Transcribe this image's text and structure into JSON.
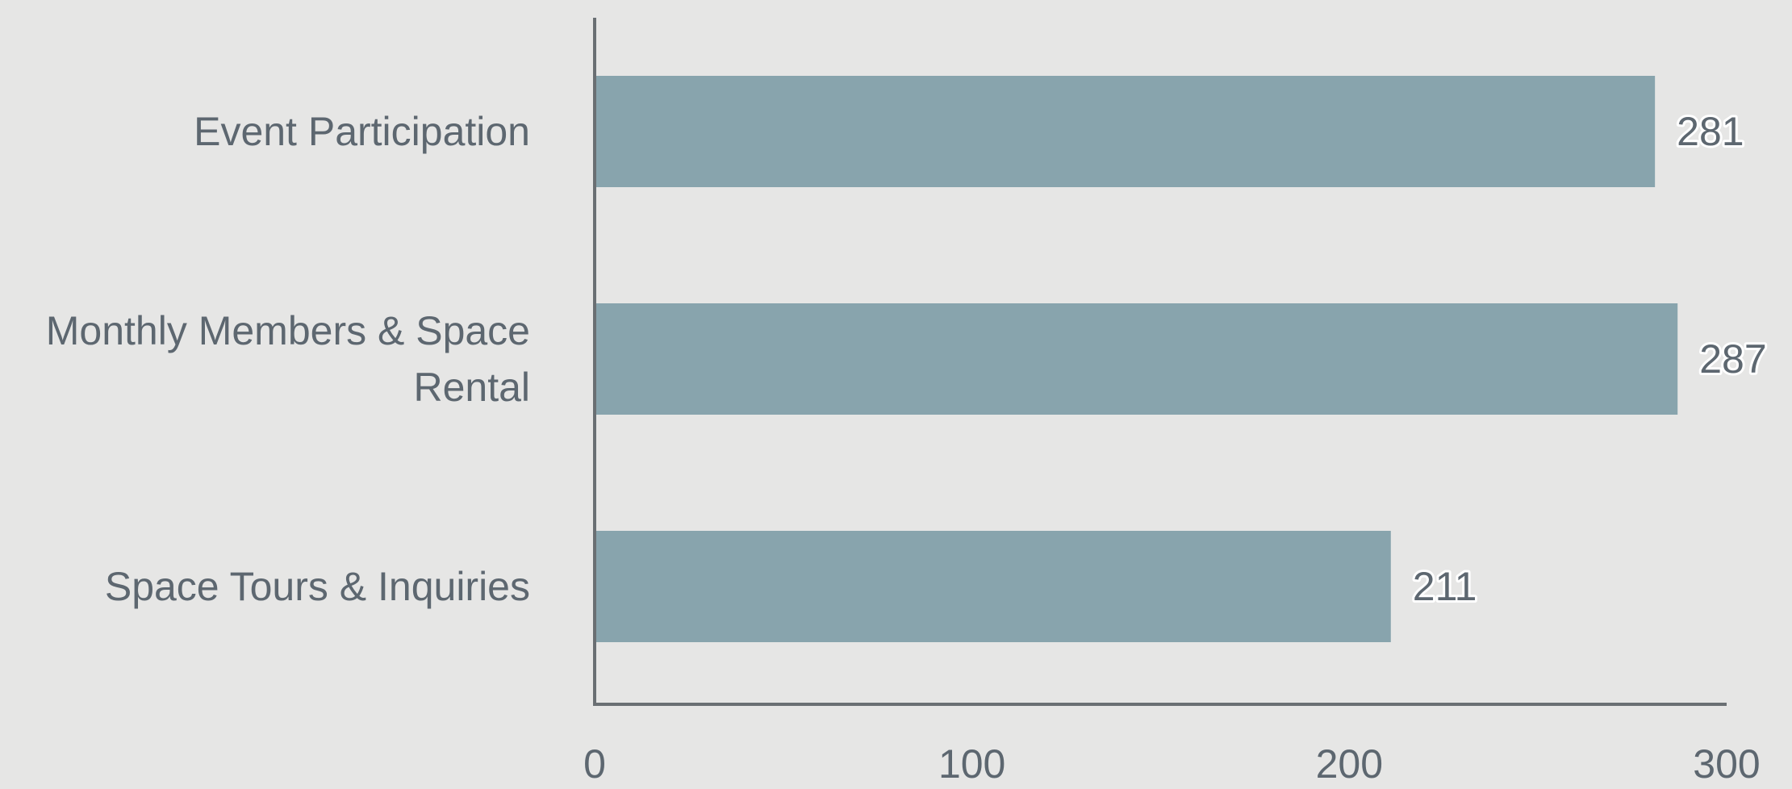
{
  "chart_data": {
    "type": "bar",
    "orientation": "horizontal",
    "categories": [
      [
        "Event Participation"
      ],
      [
        "Monthly Members & Space",
        "Rental"
      ],
      [
        "Space Tours & Inquiries"
      ]
    ],
    "values": [
      281,
      287,
      211
    ],
    "data_labels": [
      "281",
      "287",
      "211"
    ],
    "xlim": [
      0,
      300
    ],
    "xticks": [
      0,
      100,
      200,
      300
    ],
    "xtick_labels": [
      "0",
      "100",
      "200",
      "300"
    ],
    "title": "",
    "xlabel": "",
    "ylabel": "",
    "grid": false,
    "legend": "none",
    "colors": {
      "background": "#e6e6e5",
      "bar": "#88a4ad",
      "axis": "#6a6f73",
      "text": "#5d6770"
    }
  }
}
